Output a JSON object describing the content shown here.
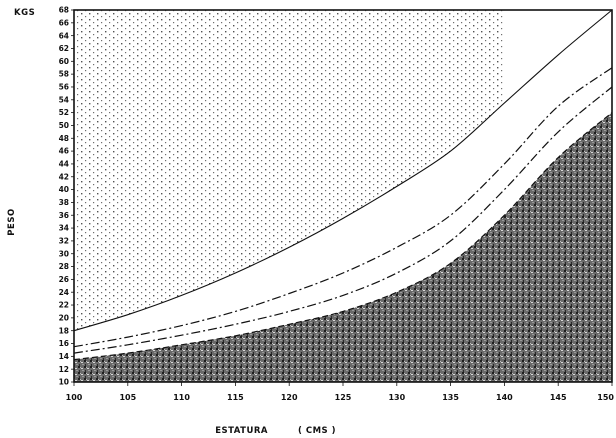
{
  "chart_data": {
    "type": "line",
    "title": "",
    "xlabel": "ESTATURA",
    "xunit": "( CMS )",
    "ylabel": "PESO",
    "yunit": "KGS",
    "xlim": [
      100,
      150
    ],
    "ylim": [
      10,
      68
    ],
    "x_ticks": [
      "100",
      "105",
      "110",
      "115",
      "120",
      "125",
      "130",
      "135",
      "140",
      "145",
      "150"
    ],
    "y_ticks": [
      10,
      12,
      14,
      16,
      18,
      20,
      22,
      24,
      26,
      28,
      30,
      32,
      34,
      36,
      38,
      40,
      42,
      44,
      46,
      48,
      50,
      52,
      54,
      56,
      58,
      60,
      62,
      64,
      66,
      68
    ],
    "grid": false,
    "stipple_upper_region": true,
    "shaded_lower_region": true,
    "colors": {
      "line": "#111111",
      "shade": "#3a3a3a",
      "stipple": "#333333"
    },
    "series": [
      {
        "style": "solid",
        "x": [
          100,
          105,
          110,
          115,
          120,
          125,
          130,
          135,
          140,
          145,
          150
        ],
        "y": [
          18,
          20.5,
          23.5,
          27,
          31,
          35.5,
          40.5,
          46,
          53.5,
          61,
          68
        ]
      },
      {
        "style": "dashdot",
        "x": [
          100,
          105,
          110,
          115,
          120,
          125,
          130,
          135,
          140,
          145,
          150
        ],
        "y": [
          15.5,
          17,
          18.8,
          21,
          23.8,
          27,
          31,
          36,
          44,
          53,
          59
        ]
      },
      {
        "style": "dashdot",
        "x": [
          100,
          105,
          110,
          115,
          120,
          125,
          130,
          135,
          140,
          145,
          150
        ],
        "y": [
          14.5,
          15.8,
          17.3,
          19,
          21,
          23.5,
          27,
          32,
          40,
          49,
          56
        ]
      },
      {
        "style": "dashed",
        "x": [
          100,
          105,
          110,
          115,
          120,
          125,
          130,
          135,
          140,
          145,
          150
        ],
        "y": [
          13.5,
          14.5,
          15.8,
          17.2,
          19,
          21,
          24,
          28.5,
          36,
          45,
          52
        ]
      }
    ]
  }
}
